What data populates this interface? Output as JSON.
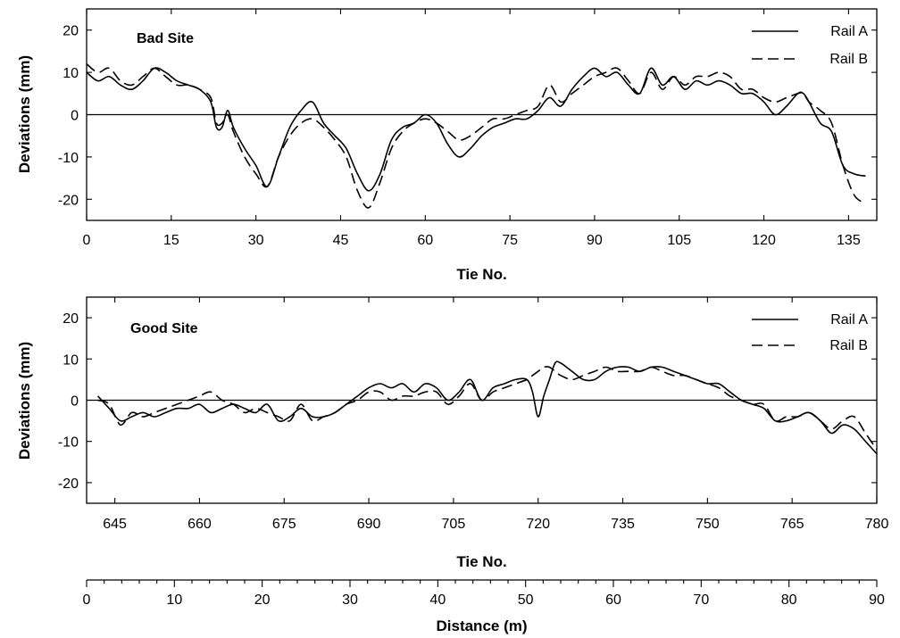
{
  "chart_data": [
    {
      "type": "line",
      "annotation": "Bad Site",
      "xlabel": "Tie No.",
      "ylabel": "Deviations (mm)",
      "xlim": [
        0,
        140
      ],
      "ylim": [
        -25,
        25
      ],
      "xticks": [
        0,
        15,
        30,
        45,
        60,
        75,
        90,
        105,
        120,
        135
      ],
      "yticks": [
        -20,
        -10,
        0,
        10,
        20
      ],
      "legend_position": "top-right",
      "series": [
        {
          "name": "Rail A",
          "style": "solid",
          "x": [
            0,
            2,
            4,
            6,
            8,
            10,
            12,
            14,
            16,
            18,
            20,
            22,
            23,
            24,
            25,
            26,
            28,
            30,
            32,
            34,
            36,
            38,
            40,
            42,
            44,
            46,
            48,
            50,
            52,
            54,
            56,
            58,
            60,
            62,
            64,
            66,
            68,
            70,
            72,
            74,
            76,
            78,
            80,
            82,
            84,
            86,
            88,
            90,
            92,
            94,
            96,
            98,
            100,
            102,
            104,
            106,
            108,
            110,
            112,
            114,
            116,
            118,
            120,
            122,
            124,
            126,
            127,
            128,
            130,
            132,
            134,
            136,
            138
          ],
          "y": [
            10,
            8,
            9,
            7,
            6,
            8,
            11,
            10,
            8,
            7,
            6,
            3,
            -3,
            -3,
            1,
            -3,
            -8,
            -12,
            -17,
            -10,
            -3,
            1,
            3,
            -2,
            -5,
            -8,
            -14,
            -18,
            -14,
            -6,
            -3,
            -2,
            0,
            -2,
            -7,
            -10,
            -8,
            -5,
            -3,
            -2,
            -1,
            -1,
            1,
            4,
            2,
            6,
            9,
            11,
            9,
            10,
            7,
            5,
            11,
            7,
            9,
            6,
            8,
            7,
            8,
            7,
            5,
            5,
            3,
            0,
            2,
            5,
            5,
            3,
            -2,
            -4,
            -12,
            -14,
            -14.5
          ]
        },
        {
          "name": "Rail B",
          "style": "dashed",
          "x": [
            0,
            2,
            4,
            6,
            8,
            10,
            12,
            14,
            16,
            18,
            20,
            22,
            23,
            24,
            25,
            26,
            28,
            30,
            32,
            34,
            36,
            38,
            40,
            42,
            44,
            46,
            48,
            50,
            52,
            54,
            56,
            58,
            60,
            62,
            64,
            66,
            68,
            70,
            72,
            74,
            76,
            78,
            80,
            82,
            84,
            86,
            88,
            90,
            92,
            94,
            96,
            98,
            100,
            102,
            104,
            106,
            108,
            110,
            112,
            114,
            116,
            118,
            120,
            122,
            124,
            126,
            127,
            128,
            130,
            132,
            134,
            136,
            138
          ],
          "y": [
            12,
            10,
            11,
            8,
            7,
            9,
            11,
            9,
            7,
            7,
            6,
            4,
            -2,
            -2,
            0,
            -4,
            -10,
            -14,
            -17,
            -10,
            -5,
            -2,
            -1,
            -3,
            -6,
            -10,
            -18,
            -22,
            -16,
            -8,
            -4,
            -2,
            -1,
            -2,
            -4,
            -6,
            -5,
            -3,
            -1,
            -1,
            0,
            1,
            2,
            7,
            3,
            5,
            7,
            9,
            10,
            11,
            8,
            5,
            10,
            6,
            9,
            7,
            9,
            9,
            10,
            9,
            6,
            6,
            4,
            3,
            4,
            5,
            5,
            3,
            1,
            -2,
            -12,
            -19,
            -21
          ]
        }
      ]
    },
    {
      "type": "line",
      "annotation": "Good Site",
      "xlabel": "Tie No.",
      "ylabel": "Deviations (mm)",
      "xlim": [
        640,
        780
      ],
      "ylim": [
        -25,
        25
      ],
      "xticks": [
        645,
        660,
        675,
        690,
        705,
        720,
        735,
        750,
        765,
        780
      ],
      "yticks": [
        -20,
        -10,
        0,
        10,
        20
      ],
      "legend_position": "top-right",
      "secondary_x_axis": {
        "label": "Distance (m)",
        "xlim": [
          0,
          90
        ],
        "xticks": [
          0,
          10,
          20,
          30,
          40,
          50,
          60,
          70,
          80,
          90
        ]
      },
      "series": [
        {
          "name": "Rail A",
          "style": "solid",
          "x": [
            642,
            644,
            646,
            648,
            650,
            652,
            654,
            656,
            658,
            660,
            662,
            664,
            666,
            668,
            670,
            672,
            674,
            676,
            678,
            680,
            682,
            684,
            686,
            688,
            690,
            692,
            694,
            696,
            698,
            700,
            702,
            704,
            706,
            708,
            710,
            712,
            714,
            716,
            718,
            719,
            720,
            721,
            722,
            723,
            724,
            726,
            728,
            730,
            732,
            734,
            736,
            738,
            740,
            742,
            744,
            746,
            748,
            750,
            752,
            754,
            756,
            758,
            760,
            762,
            764,
            766,
            768,
            770,
            772,
            774,
            776,
            778,
            780
          ],
          "y": [
            1,
            -2,
            -5,
            -4,
            -3,
            -4,
            -3,
            -2,
            -2,
            -1,
            -3,
            -2,
            -1,
            -2,
            -3,
            -1,
            -5,
            -4,
            -2,
            -4,
            -4,
            -3,
            -1,
            1,
            3,
            4,
            3,
            4,
            2,
            4,
            3,
            0,
            2,
            5,
            0,
            3,
            4,
            5,
            5,
            2,
            -4,
            1,
            5,
            9,
            9,
            7,
            5,
            5,
            7,
            8,
            8,
            7,
            8,
            8,
            7,
            6,
            5,
            4,
            4,
            2,
            0,
            -1,
            -2,
            -5,
            -5,
            -4,
            -3,
            -5,
            -8,
            -6,
            -7,
            -10,
            -13
          ]
        },
        {
          "name": "Rail B",
          "style": "dashed",
          "x": [
            642,
            644,
            646,
            648,
            650,
            652,
            654,
            656,
            658,
            660,
            662,
            664,
            666,
            668,
            670,
            672,
            674,
            676,
            678,
            680,
            682,
            684,
            686,
            688,
            690,
            692,
            694,
            696,
            698,
            700,
            702,
            704,
            706,
            708,
            710,
            712,
            714,
            716,
            718,
            719,
            720,
            721,
            722,
            723,
            724,
            726,
            728,
            730,
            732,
            734,
            736,
            738,
            740,
            742,
            744,
            746,
            748,
            750,
            752,
            754,
            756,
            758,
            760,
            762,
            764,
            766,
            768,
            770,
            772,
            774,
            776,
            778,
            780
          ],
          "y": [
            0,
            -1,
            -6,
            -3,
            -4,
            -3,
            -2,
            -1,
            0,
            1,
            2,
            0,
            -1,
            -3,
            -2,
            -3,
            -4,
            -5,
            -1,
            -5,
            -4,
            -3,
            -1,
            0,
            2,
            2,
            0,
            1,
            1,
            2,
            2,
            -1,
            1,
            4,
            0,
            2,
            3,
            4,
            5,
            6,
            7,
            8,
            8,
            7,
            6,
            5,
            6,
            7,
            8,
            7,
            7,
            7,
            8,
            7,
            6,
            6,
            5,
            4,
            3,
            1,
            0,
            -1,
            -1,
            -5,
            -4,
            -4,
            -3,
            -5,
            -7,
            -5,
            -4,
            -8,
            -12
          ]
        }
      ]
    }
  ]
}
